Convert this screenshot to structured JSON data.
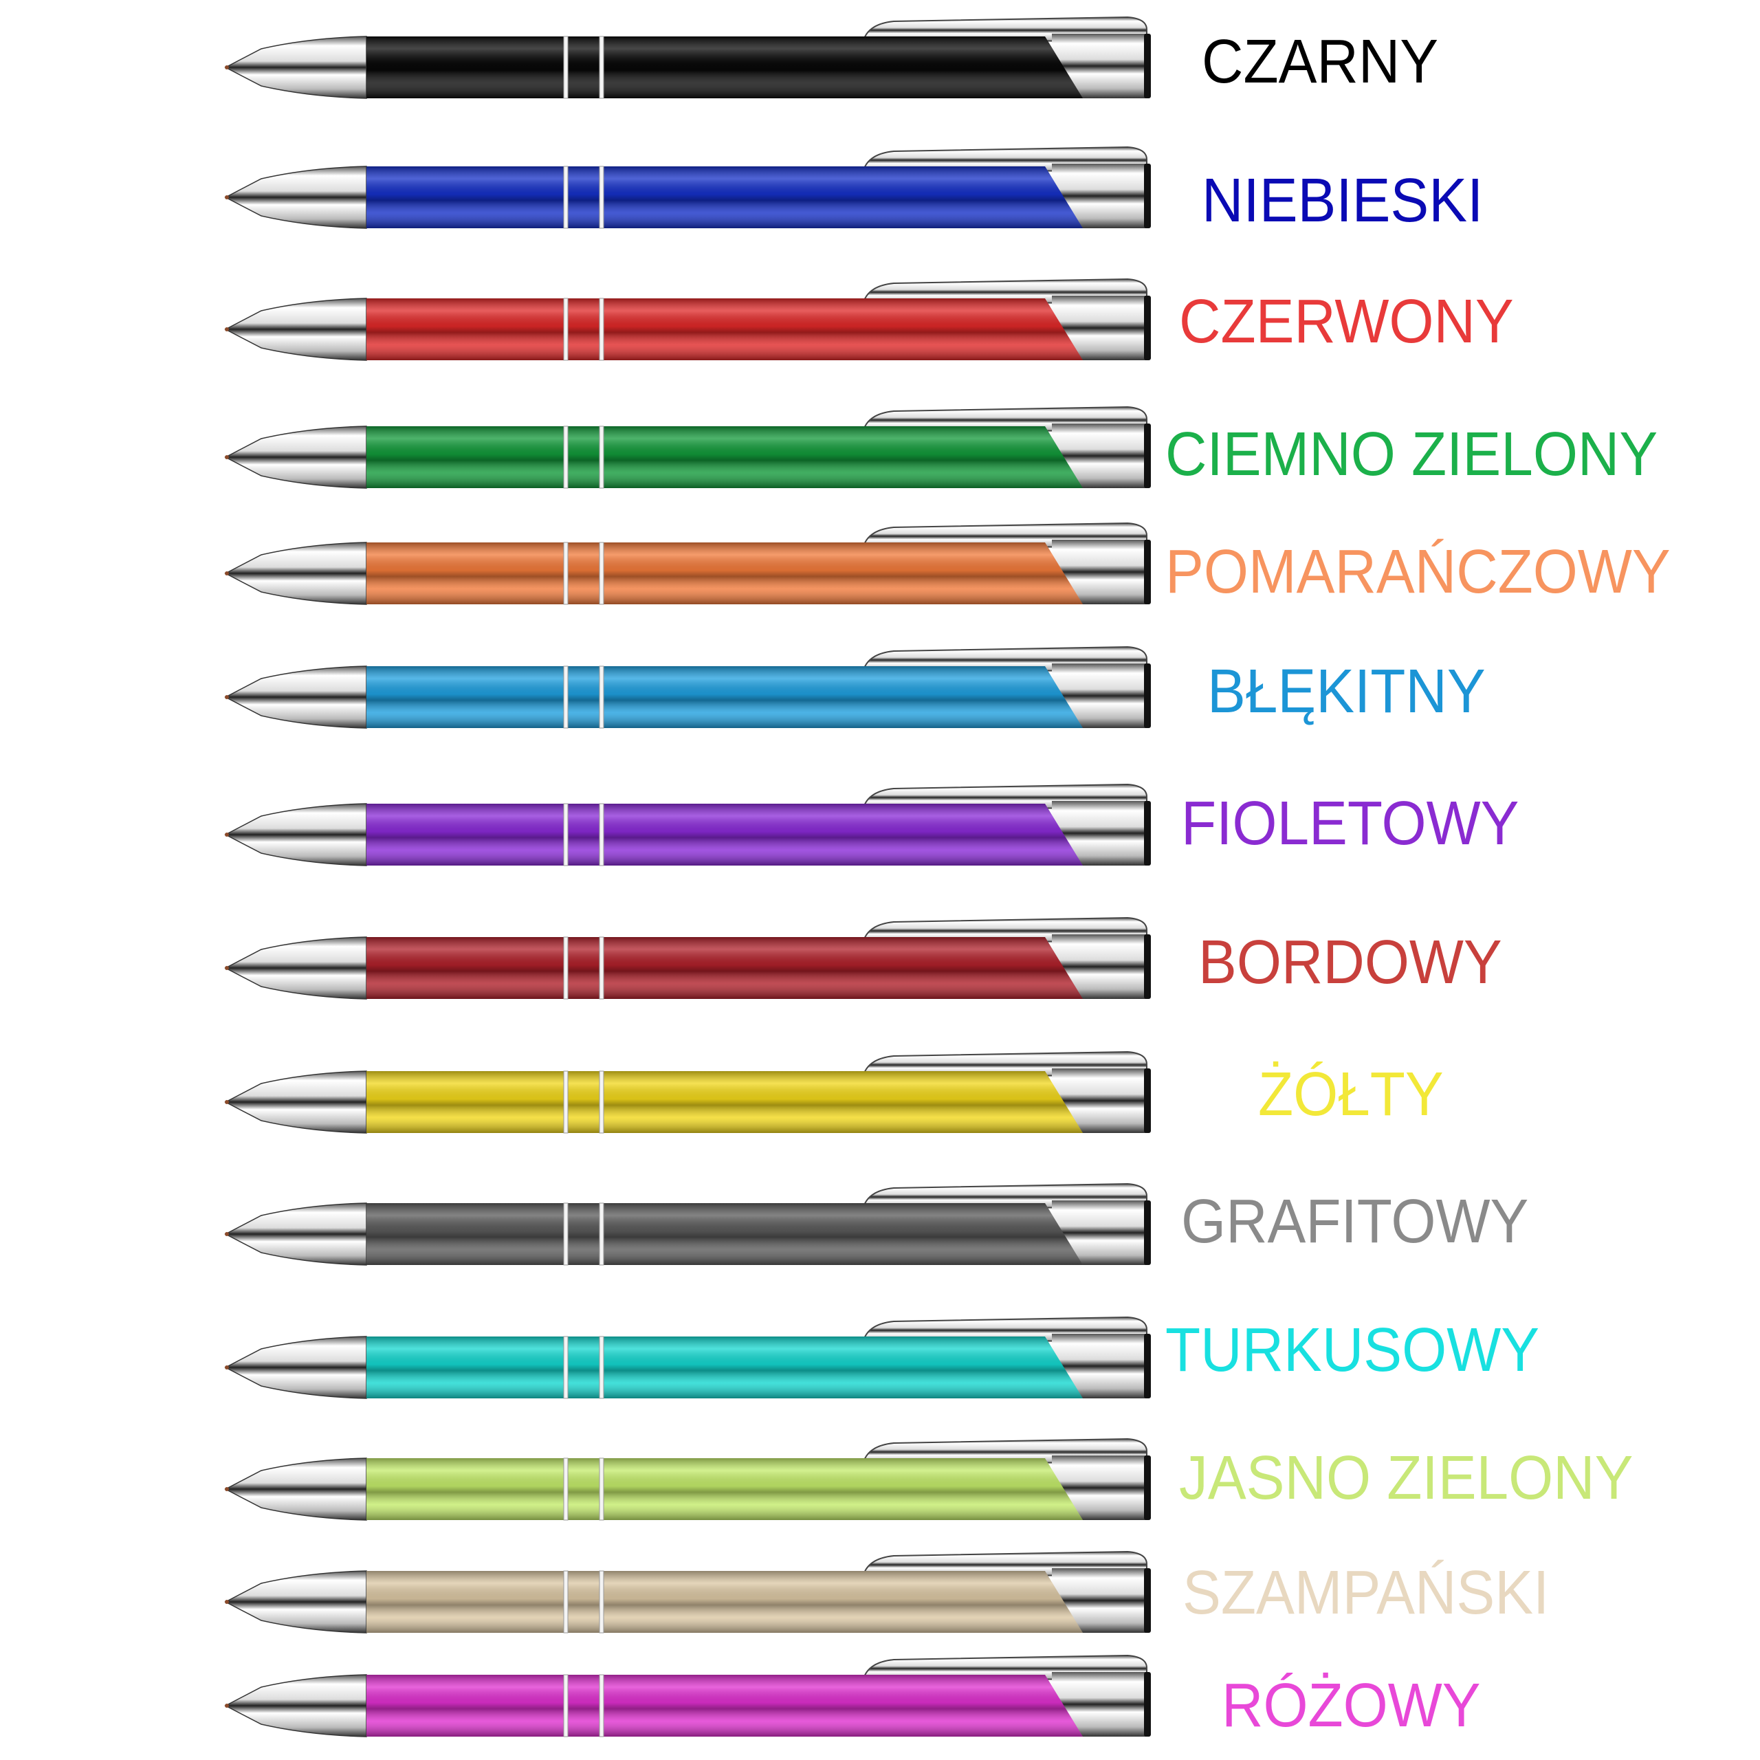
{
  "pens": [
    {
      "label": "CZARNY",
      "text_color": "#000000",
      "body_color": "#0a0a0a"
    },
    {
      "label": "NIEBIESKI",
      "text_color": "#0a0ab4",
      "body_color": "#1530c8"
    },
    {
      "label": "CZERWONY",
      "text_color": "#e83a3a",
      "body_color": "#e02828"
    },
    {
      "label": "CIEMNO ZIELONY",
      "text_color": "#1bb04a",
      "body_color": "#129a3a"
    },
    {
      "label": "POMARAŃCZOWY",
      "text_color": "#f7945f",
      "body_color": "#f27a3a"
    },
    {
      "label": "BŁĘKITNY",
      "text_color": "#1c95d6",
      "body_color": "#1fa0e0"
    },
    {
      "label": "FIOLETOWY",
      "text_color": "#8a2bd1",
      "body_color": "#8a2ad8"
    },
    {
      "label": "BORDOWY",
      "text_color": "#c8403c",
      "body_color": "#b0202a"
    },
    {
      "label": "ŻÓŁTY",
      "text_color": "#f2e838",
      "body_color": "#f2d81a"
    },
    {
      "label": "GRAFITOWY",
      "text_color": "#8a8a8a",
      "body_color": "#5a5a5a"
    },
    {
      "label": "TURKUSOWY",
      "text_color": "#18e0e0",
      "body_color": "#14d8d0"
    },
    {
      "label": "JASNO ZIELONY",
      "text_color": "#c8e878",
      "body_color": "#c4ec6a"
    },
    {
      "label": "SZAMPAŃSKI",
      "text_color": "#e8d8c0",
      "body_color": "#dcc8a4"
    },
    {
      "label": "RÓŻOWY",
      "text_color": "#e848d8",
      "body_color": "#e030d0"
    }
  ]
}
